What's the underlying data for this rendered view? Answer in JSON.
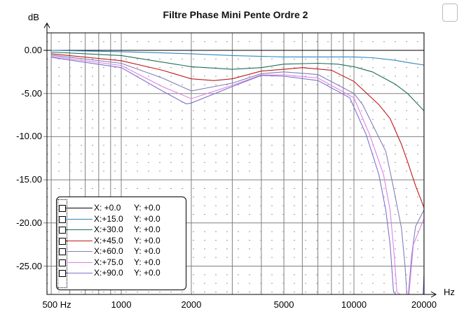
{
  "chart_data": {
    "type": "line",
    "title": "Filtre Phase Mini Pente Ordre 2",
    "ylabel": "dB",
    "xlabel": "Hz",
    "x_scale": "log",
    "xlim": [
      480,
      22500
    ],
    "ylim": [
      -28.3,
      2.0
    ],
    "grid": true,
    "legend_position": "bottom-left",
    "y_ticks": [
      {
        "value": 0,
        "label": "0.00"
      },
      {
        "value": -5,
        "label": "-5.00"
      },
      {
        "value": -10,
        "label": "-10.00"
      },
      {
        "value": -15,
        "label": "-15.00"
      },
      {
        "value": -20,
        "label": "-20.00"
      },
      {
        "value": -25,
        "label": "-25.00"
      }
    ],
    "x_ticks": [
      {
        "value": 500,
        "label": "500 Hz"
      },
      {
        "value": 1000,
        "label": "1000"
      },
      {
        "value": 2000,
        "label": "2000"
      },
      {
        "value": 5000,
        "label": "5000"
      },
      {
        "value": 10000,
        "label": "10000"
      },
      {
        "value": 20000,
        "label": "20000"
      }
    ],
    "series": [
      {
        "name": "X: +0.0",
        "y_label": "Y: +0.0",
        "color": "#000000",
        "points": [
          [
            480,
            0
          ],
          [
            22500,
            0
          ]
        ]
      },
      {
        "name": "X:+15.0",
        "y_label": "Y: +0.0",
        "color": "#2f86bf",
        "points": [
          [
            500,
            0
          ],
          [
            1000,
            -0.15
          ],
          [
            2000,
            -0.4
          ],
          [
            3000,
            -0.6
          ],
          [
            5000,
            -0.76
          ],
          [
            7000,
            -0.76
          ],
          [
            10000,
            -0.76
          ],
          [
            12000,
            -0.85
          ],
          [
            15000,
            -1.15
          ],
          [
            17000,
            -1.4
          ],
          [
            20000,
            -1.7
          ]
        ]
      },
      {
        "name": "X:+30.0",
        "y_label": "Y: +0.0",
        "color": "#1e6e5c",
        "points": [
          [
            500,
            -0.2
          ],
          [
            1000,
            -0.6
          ],
          [
            2000,
            -1.9
          ],
          [
            3000,
            -2.2
          ],
          [
            4000,
            -2.0
          ],
          [
            5000,
            -1.6
          ],
          [
            7000,
            -1.5
          ],
          [
            8500,
            -1.6
          ],
          [
            10000,
            -1.9
          ],
          [
            12000,
            -2.5
          ],
          [
            15000,
            -3.9
          ],
          [
            17000,
            -5.0
          ],
          [
            20000,
            -7.0
          ]
        ]
      },
      {
        "name": "X:+45.0",
        "y_label": "Y: +0.0",
        "color": "#c01818",
        "points": [
          [
            500,
            -0.4
          ],
          [
            1000,
            -1.2
          ],
          [
            1500,
            -2.3
          ],
          [
            2000,
            -3.3
          ],
          [
            2500,
            -3.5
          ],
          [
            3000,
            -3.3
          ],
          [
            4000,
            -2.4
          ],
          [
            5000,
            -2.2
          ],
          [
            6000,
            -2.0
          ],
          [
            8000,
            -2.3
          ],
          [
            10000,
            -3.6
          ],
          [
            12800,
            -6.3
          ],
          [
            14300,
            -7.9
          ],
          [
            16000,
            -10.9
          ],
          [
            17200,
            -13.3
          ],
          [
            18400,
            -15.7
          ],
          [
            20000,
            -18.2
          ]
        ]
      },
      {
        "name": "X:+60.0",
        "y_label": "Y: +0.0",
        "color": "#7f80b8",
        "points": [
          [
            500,
            -0.55
          ],
          [
            1000,
            -1.5
          ],
          [
            1500,
            -3.2
          ],
          [
            2000,
            -4.7
          ],
          [
            3000,
            -3.8
          ],
          [
            4000,
            -2.7
          ],
          [
            5000,
            -2.5
          ],
          [
            7000,
            -2.8
          ],
          [
            10000,
            -5.0
          ],
          [
            10900,
            -6.3
          ],
          [
            13700,
            -11.7
          ],
          [
            14600,
            -15.2
          ],
          [
            16000,
            -20.6
          ],
          [
            16600,
            -25.2
          ],
          [
            16900,
            -30
          ],
          [
            17100,
            -30
          ],
          [
            17700,
            -23.8
          ],
          [
            18400,
            -20.4
          ],
          [
            20000,
            -18.5
          ]
        ]
      },
      {
        "name": "X:+75.0",
        "y_label": "Y: +0.0",
        "color": "#e07fe8",
        "points": [
          [
            500,
            -0.7
          ],
          [
            1000,
            -1.75
          ],
          [
            1500,
            -4.2
          ],
          [
            2000,
            -5.6
          ],
          [
            3000,
            -4.05
          ],
          [
            4000,
            -2.85
          ],
          [
            5000,
            -2.85
          ],
          [
            7000,
            -3.2
          ],
          [
            10000,
            -5.5
          ],
          [
            11700,
            -9.8
          ],
          [
            13400,
            -14.4
          ],
          [
            14300,
            -18.5
          ],
          [
            14900,
            -23.8
          ],
          [
            15300,
            -28
          ],
          [
            16200,
            -40
          ],
          [
            17200,
            -29
          ],
          [
            18000,
            -22.5
          ],
          [
            20000,
            -19.5
          ]
        ]
      },
      {
        "name": "X:+90.0",
        "y_label": "Y: +0.0",
        "color": "#7b72cc",
        "points": [
          [
            500,
            -0.8
          ],
          [
            1000,
            -2.0
          ],
          [
            1500,
            -4.7
          ],
          [
            1900,
            -6.2
          ],
          [
            2000,
            -6.1
          ],
          [
            3000,
            -4.2
          ],
          [
            4000,
            -2.9
          ],
          [
            5000,
            -3.0
          ],
          [
            7000,
            -3.5
          ],
          [
            9600,
            -5.5
          ],
          [
            11300,
            -9.8
          ],
          [
            12800,
            -14.4
          ],
          [
            13700,
            -18.5
          ],
          [
            14300,
            -22.5
          ],
          [
            14800,
            -28
          ],
          [
            15500,
            -40
          ],
          [
            19800,
            -40
          ],
          [
            20000,
            -26
          ]
        ]
      }
    ]
  }
}
